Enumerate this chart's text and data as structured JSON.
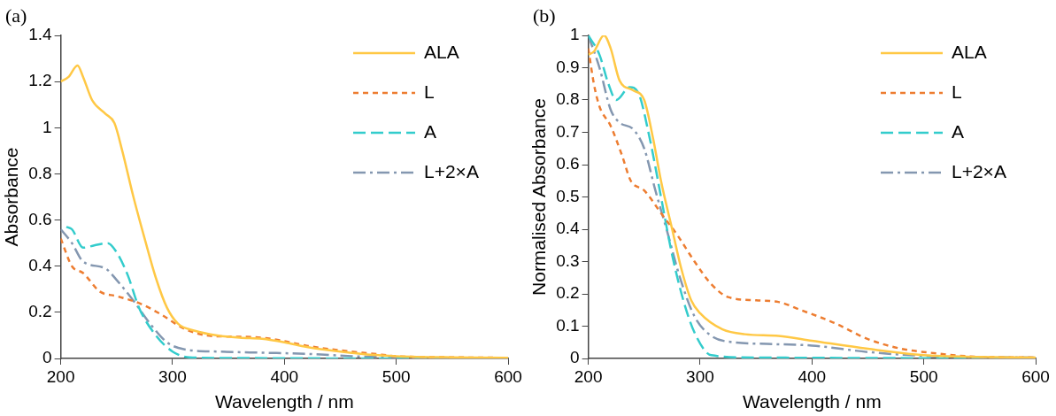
{
  "chart_data": [
    {
      "type": "line",
      "annotations": [
        "(a)"
      ],
      "xlabel": "Wavelength / nm",
      "ylabel": "Absorbance",
      "xlim": [
        200,
        600
      ],
      "xticks": [
        200,
        300,
        400,
        500,
        600
      ],
      "ylim": [
        0,
        1.4
      ],
      "yticks": [
        0,
        0.2,
        0.4,
        0.6,
        0.8,
        1,
        1.2,
        1.4
      ],
      "grid": false,
      "legend": "top right",
      "marker": "none",
      "series": [
        {
          "name": "ALA",
          "color": "#ffc845",
          "line_style": "solid",
          "x": [
            200,
            207,
            215,
            220,
            228,
            240,
            248,
            255,
            265,
            275,
            285,
            295,
            305,
            320,
            340,
            360,
            380,
            400,
            420,
            450,
            480,
            500,
            550,
            600
          ],
          "values": [
            1.2,
            1.22,
            1.27,
            1.22,
            1.12,
            1.06,
            1.02,
            0.9,
            0.7,
            0.52,
            0.35,
            0.22,
            0.15,
            0.12,
            0.1,
            0.09,
            0.085,
            0.07,
            0.05,
            0.03,
            0.015,
            0.01,
            0.005,
            0.003
          ]
        },
        {
          "name": "L",
          "color": "#ed7d31",
          "line_style": "dotted",
          "x": [
            200,
            210,
            220,
            235,
            250,
            270,
            290,
            310,
            330,
            350,
            380,
            400,
            420,
            450,
            480,
            500,
            550,
            600
          ],
          "values": [
            0.52,
            0.4,
            0.37,
            0.29,
            0.27,
            0.24,
            0.19,
            0.13,
            0.1,
            0.095,
            0.09,
            0.075,
            0.055,
            0.035,
            0.02,
            0.01,
            0.005,
            0.003
          ]
        },
        {
          "name": "A",
          "color": "#33cccc",
          "line_style": "dashed",
          "x": [
            205,
            210,
            220,
            230,
            242,
            250,
            260,
            270,
            285,
            300,
            315,
            350,
            400,
            500,
            600
          ],
          "values": [
            0.57,
            0.56,
            0.48,
            0.49,
            0.5,
            0.46,
            0.36,
            0.22,
            0.1,
            0.03,
            0.005,
            0.002,
            0.001,
            0,
            0
          ]
        },
        {
          "name": "L+2×A",
          "color": "#8497b0",
          "line_style": "dashdot",
          "x": [
            200,
            210,
            220,
            240,
            250,
            265,
            280,
            295,
            310,
            340,
            380,
            420,
            460,
            500,
            600
          ],
          "values": [
            0.56,
            0.5,
            0.42,
            0.39,
            0.34,
            0.25,
            0.15,
            0.07,
            0.04,
            0.03,
            0.025,
            0.02,
            0.01,
            0.005,
            0.002
          ]
        }
      ]
    },
    {
      "type": "line",
      "annotations": [
        "(b)"
      ],
      "xlabel": "Wavelength / nm",
      "ylabel": "Normalised Absorbance",
      "xlim": [
        200,
        600
      ],
      "xticks": [
        200,
        300,
        400,
        500,
        600
      ],
      "ylim": [
        0,
        1
      ],
      "yticks": [
        0,
        0.1,
        0.2,
        0.3,
        0.4,
        0.5,
        0.6,
        0.7,
        0.8,
        0.9,
        1
      ],
      "grid": false,
      "legend": "top right",
      "marker": "none",
      "series": [
        {
          "name": "ALA",
          "color": "#ffc845",
          "line_style": "solid",
          "x": [
            200,
            205,
            214,
            220,
            228,
            240,
            250,
            258,
            265,
            275,
            283,
            292,
            300,
            320,
            340,
            370,
            400,
            450,
            500,
            550,
            600
          ],
          "values": [
            0.94,
            0.95,
            1,
            0.96,
            0.86,
            0.83,
            0.8,
            0.68,
            0.55,
            0.4,
            0.28,
            0.18,
            0.14,
            0.09,
            0.075,
            0.07,
            0.055,
            0.03,
            0.01,
            0.005,
            0.003
          ]
        },
        {
          "name": "L",
          "color": "#ed7d31",
          "line_style": "dotted",
          "x": [
            200,
            205,
            210,
            220,
            230,
            238,
            250,
            265,
            280,
            295,
            310,
            325,
            350,
            370,
            390,
            420,
            450,
            480,
            500,
            550,
            600
          ],
          "values": [
            0.96,
            0.85,
            0.78,
            0.72,
            0.63,
            0.55,
            0.52,
            0.45,
            0.38,
            0.3,
            0.23,
            0.19,
            0.18,
            0.175,
            0.15,
            0.11,
            0.06,
            0.03,
            0.02,
            0.005,
            0.003
          ]
        },
        {
          "name": "A",
          "color": "#33cccc",
          "line_style": "dashed",
          "x": [
            200,
            210,
            218,
            225,
            237,
            245,
            255,
            265,
            275,
            285,
            295,
            310,
            350,
            400,
            600
          ],
          "values": [
            1,
            0.94,
            0.85,
            0.8,
            0.84,
            0.82,
            0.68,
            0.5,
            0.32,
            0.18,
            0.08,
            0.01,
            0.003,
            0.002,
            0
          ]
        },
        {
          "name": "L+2×A",
          "color": "#8497b0",
          "line_style": "dashdot",
          "x": [
            200,
            210,
            220,
            228,
            240,
            250,
            260,
            270,
            282,
            295,
            310,
            330,
            360,
            400,
            450,
            500,
            600
          ],
          "values": [
            1,
            0.9,
            0.77,
            0.73,
            0.71,
            0.65,
            0.52,
            0.4,
            0.25,
            0.13,
            0.07,
            0.05,
            0.045,
            0.04,
            0.02,
            0.008,
            0.003
          ]
        }
      ]
    }
  ]
}
